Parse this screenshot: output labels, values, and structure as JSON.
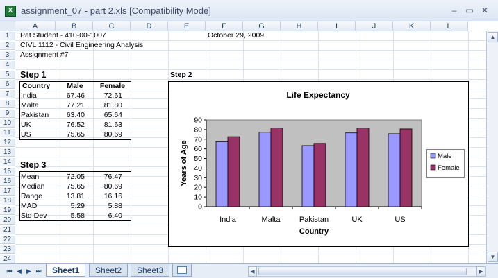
{
  "window": {
    "title": "assignment_07 - part 2.xls  [Compatibility Mode]",
    "controls": {
      "minimize": "–",
      "restore": "▭",
      "close": "✕"
    }
  },
  "columns": [
    "A",
    "B",
    "C",
    "D",
    "E",
    "F",
    "G",
    "H",
    "I",
    "J",
    "K",
    "L"
  ],
  "rows": [
    "1",
    "2",
    "3",
    "4",
    "5",
    "6",
    "7",
    "8",
    "9",
    "10",
    "11",
    "12",
    "13",
    "14",
    "15",
    "16",
    "17",
    "18",
    "19",
    "20",
    "21",
    "22",
    "23",
    "24"
  ],
  "header_info": {
    "student": "Pat Student - 410-00-1007",
    "course": "CIVL 1112 - Civil Engineering Analysis",
    "assignment": "Assignment #7",
    "date": "October 29, 2009"
  },
  "step1": {
    "label": "Step 1",
    "headers": [
      "Country",
      "Male",
      "Female"
    ],
    "rows": [
      [
        "India",
        "67.46",
        "72.61"
      ],
      [
        "Malta",
        "77.21",
        "81.80"
      ],
      [
        "Pakistan",
        "63.40",
        "65.64"
      ],
      [
        "UK",
        "76.52",
        "81.63"
      ],
      [
        "US",
        "75.65",
        "80.69"
      ]
    ]
  },
  "step2": {
    "label": "Step 2"
  },
  "step3": {
    "label": "Step 3",
    "rows": [
      [
        "Mean",
        "72.05",
        "76.47"
      ],
      [
        "Median",
        "75.65",
        "80.69"
      ],
      [
        "Range",
        "13.81",
        "16.16"
      ],
      [
        "MAD",
        "5.29",
        "5.88"
      ],
      [
        "Std Dev",
        "5.58",
        "6.40"
      ]
    ]
  },
  "sheets": [
    "Sheet1",
    "Sheet2",
    "Sheet3"
  ],
  "active_sheet": "Sheet1",
  "nav": {
    "first": "⏮",
    "prev": "◀",
    "next": "▶",
    "last": "⏭"
  },
  "scroll": {
    "up": "▲",
    "down": "▼",
    "left": "◀",
    "right": "▶"
  },
  "chart_data": {
    "type": "bar",
    "title": "Life Expectancy",
    "xlabel": "Country",
    "ylabel": "Years of Age",
    "categories": [
      "India",
      "Malta",
      "Pakistan",
      "UK",
      "US"
    ],
    "series": [
      {
        "name": "Male",
        "values": [
          67.46,
          77.21,
          63.4,
          76.52,
          75.65
        ],
        "color": "#9999ff"
      },
      {
        "name": "Female",
        "values": [
          72.61,
          81.8,
          65.64,
          81.63,
          80.69
        ],
        "color": "#993366"
      }
    ],
    "ylim": [
      0,
      90
    ],
    "yticks": [
      "0",
      "10",
      "20",
      "30",
      "40",
      "50",
      "60",
      "70",
      "80",
      "90"
    ],
    "plot_bg": "#c0c0c0",
    "grid": false,
    "legend_position": "right"
  }
}
